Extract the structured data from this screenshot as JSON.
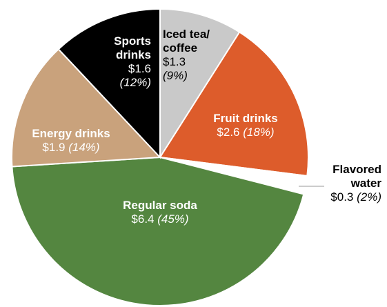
{
  "chart_data": {
    "type": "pie",
    "title": "",
    "start_angle_deg": 0,
    "direction": "clockwise",
    "slices": [
      {
        "label_lines": [
          "Iced tea/",
          "coffee"
        ],
        "value_text": "$1.3",
        "pct_text": "(9%)",
        "value": 1.3,
        "percent": 9,
        "color": "#c9c9c9"
      },
      {
        "label_lines": [
          "Fruit drinks"
        ],
        "value_text": "$2.6",
        "pct_text": "(18%)",
        "value": 2.6,
        "percent": 18,
        "color": "#dd5c2b"
      },
      {
        "label_lines": [
          "Flavored",
          "water"
        ],
        "value_text": "$0.3",
        "pct_text": "(2%)",
        "value": 0.3,
        "percent": 2,
        "color": "#ffffff"
      },
      {
        "label_lines": [
          "Regular soda"
        ],
        "value_text": "$6.4",
        "pct_text": "(45%)",
        "value": 6.4,
        "percent": 45,
        "color": "#548640"
      },
      {
        "label_lines": [
          "Energy drinks"
        ],
        "value_text": "$1.9",
        "pct_text": "(14%)",
        "value": 1.9,
        "percent": 14,
        "color": "#c9a27c"
      },
      {
        "label_lines": [
          "Sports",
          "drinks"
        ],
        "value_text": "$1.6",
        "pct_text": "(12%)",
        "value": 1.6,
        "percent": 12,
        "color": "#000000"
      }
    ]
  }
}
